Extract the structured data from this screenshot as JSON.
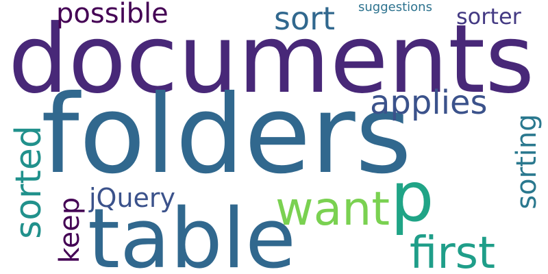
{
  "words": {
    "documents": {
      "text": "documents",
      "color": "#482878"
    },
    "folders": {
      "text": "folders",
      "color": "#31688e"
    },
    "table": {
      "text": "table",
      "color": "#31688e"
    },
    "p": {
      "text": "p",
      "color": "#20a486"
    },
    "want": {
      "text": "want",
      "color": "#7ad151"
    },
    "sort": {
      "text": "sort",
      "color": "#31688e"
    },
    "applies": {
      "text": "applies",
      "color": "#3b528b"
    },
    "possible": {
      "text": "possible",
      "color": "#440154"
    },
    "sorter": {
      "text": "sorter",
      "color": "#443a83"
    },
    "suggestions": {
      "text": "suggestions",
      "color": "#2c728e"
    },
    "sorted": {
      "text": "sorted",
      "color": "#21918c"
    },
    "sorting": {
      "text": "sorting",
      "color": "#2a788e"
    },
    "jquery": {
      "text": "jQuery",
      "color": "#3b528b"
    },
    "keep": {
      "text": "keep",
      "color": "#440154"
    },
    "first": {
      "text": "first",
      "color": "#1f9e89"
    }
  }
}
